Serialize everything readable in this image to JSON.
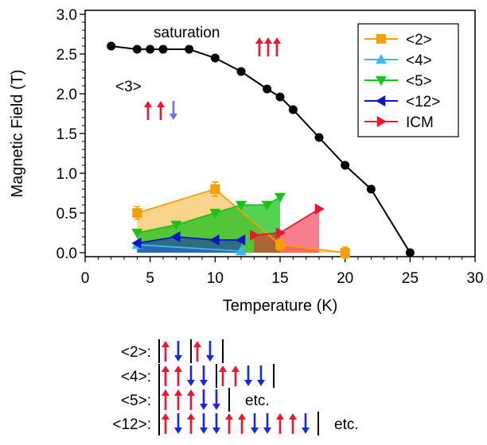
{
  "chart_data": {
    "type": "line",
    "xlabel": "Temperature (K)",
    "ylabel": "Magnetic Field (T)",
    "xlim": [
      0,
      30
    ],
    "ylim": [
      -0.05,
      3.05
    ],
    "x_ticks": [
      "0",
      "5",
      "10",
      "15",
      "20",
      "25",
      "30"
    ],
    "y_ticks": [
      "0.0",
      "0.5",
      "1.0",
      "1.5",
      "2.0",
      "2.5",
      "3.0"
    ],
    "grid": false,
    "legend_position": "top-right",
    "colors": {
      "saturation": "#000000",
      "two": "#f5a000",
      "four": "#3cb8f0",
      "five": "#19c219",
      "twelve": "#0a14c8",
      "icm": "#f0142d",
      "spin_up": "#f0142d",
      "spin_down": "#1428e6",
      "spin_down_light": "#6e6ef0"
    },
    "series": [
      {
        "key": "saturation",
        "marker": "circle",
        "points": [
          [
            2,
            2.6
          ],
          [
            4,
            2.56
          ],
          [
            5,
            2.56
          ],
          [
            6,
            2.56
          ],
          [
            8,
            2.56
          ],
          [
            10,
            2.45
          ],
          [
            12,
            2.28
          ],
          [
            14,
            2.06
          ],
          [
            15,
            1.96
          ],
          [
            16,
            1.8
          ],
          [
            18,
            1.45
          ],
          [
            20,
            1.1
          ],
          [
            22,
            0.8
          ],
          [
            25,
            0.0
          ]
        ]
      },
      {
        "key": "two",
        "name": "<2>",
        "marker": "square",
        "fill": true,
        "points": [
          [
            4,
            0.5
          ],
          [
            10,
            0.8
          ],
          [
            15,
            0.1
          ],
          [
            20,
            0.0
          ]
        ],
        "errors": [
          0.08,
          0.09,
          0.07,
          0.07
        ]
      },
      {
        "key": "four",
        "name": "<4>",
        "marker": "triangle-up",
        "fill": true,
        "points": [
          [
            4,
            0.1
          ],
          [
            12,
            0.02
          ]
        ]
      },
      {
        "key": "five",
        "name": "<5>",
        "marker": "triangle-down",
        "fill": true,
        "points": [
          [
            4,
            0.25
          ],
          [
            7,
            0.35
          ],
          [
            10,
            0.5
          ],
          [
            12,
            0.6
          ],
          [
            14,
            0.6
          ],
          [
            15,
            0.7
          ]
        ]
      },
      {
        "key": "twelve",
        "name": "<12>",
        "marker": "triangle-left",
        "fill": true,
        "points": [
          [
            4,
            0.12
          ],
          [
            7,
            0.2
          ],
          [
            10,
            0.16
          ],
          [
            12,
            0.16
          ]
        ]
      },
      {
        "key": "icm",
        "name": "ICM",
        "marker": "triangle-right",
        "fill": true,
        "points": [
          [
            13,
            0.22
          ],
          [
            15,
            0.25
          ],
          [
            18,
            0.55
          ]
        ]
      }
    ],
    "annotations": {
      "saturation": "saturation",
      "three": "<3>"
    },
    "spin_diagrams": [
      {
        "label": "<2>:",
        "pattern": [
          "|",
          "u",
          "d",
          "|",
          "u",
          "d",
          "|"
        ],
        "suffix": ""
      },
      {
        "label": "<4>:",
        "pattern": [
          "|",
          "u",
          "u",
          "d",
          "d",
          "|",
          "u",
          "u",
          "d",
          "d",
          "|"
        ],
        "suffix": ""
      },
      {
        "label": "<5>:",
        "pattern": [
          "|",
          "u",
          "u",
          "u",
          "d",
          "d",
          "|"
        ],
        "suffix": "etc."
      },
      {
        "label": "<12>:",
        "pattern": [
          "|",
          "u",
          "d",
          "u",
          "d",
          "d",
          "u",
          "u",
          "d",
          "d",
          "u",
          "u",
          "d",
          "|"
        ],
        "suffix": "etc."
      }
    ]
  }
}
